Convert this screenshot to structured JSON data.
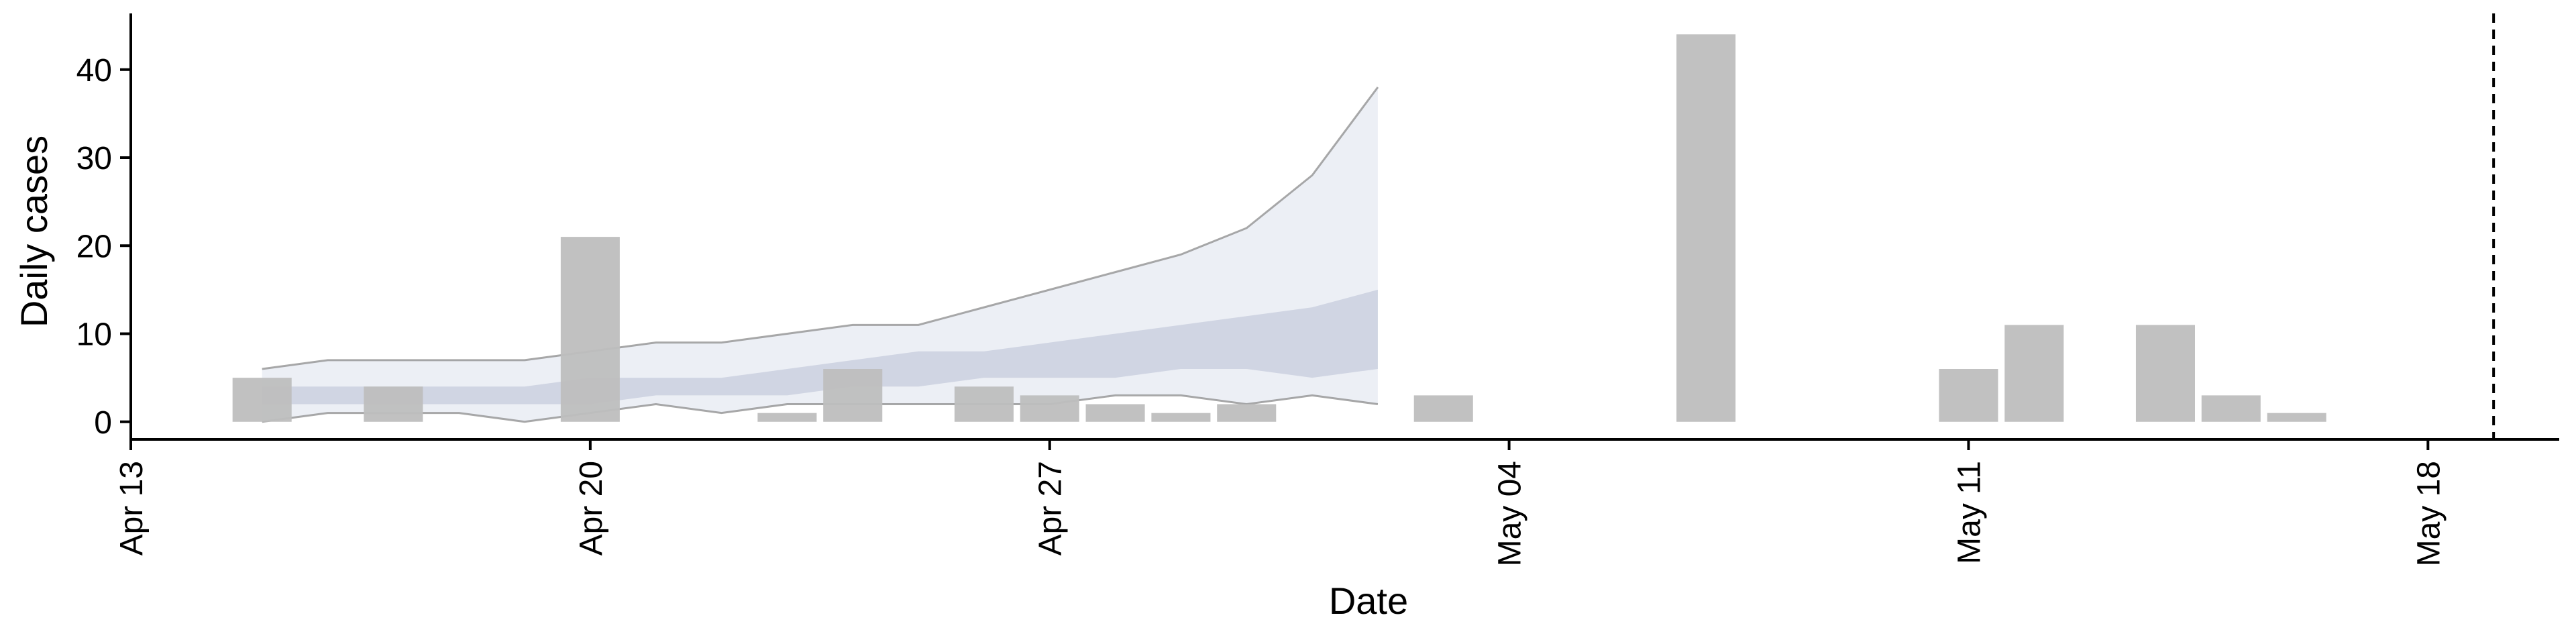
{
  "chart_data": {
    "type": "bar",
    "xlabel": "Date",
    "ylabel": "Daily cases",
    "x_type": "date",
    "xlim": [
      "2020-04-13",
      "2020-05-20"
    ],
    "ylim": [
      -2,
      46
    ],
    "x_ticks": [
      {
        "date": "2020-04-13",
        "label": "Apr 13"
      },
      {
        "date": "2020-04-20",
        "label": "Apr 20"
      },
      {
        "date": "2020-04-27",
        "label": "Apr 27"
      },
      {
        "date": "2020-05-04",
        "label": "May 04"
      },
      {
        "date": "2020-05-11",
        "label": "May 11"
      },
      {
        "date": "2020-05-18",
        "label": "May 18"
      }
    ],
    "y_ticks": [
      0,
      10,
      20,
      30,
      40
    ],
    "bars": [
      {
        "date": "2020-04-15",
        "value": 5
      },
      {
        "date": "2020-04-17",
        "value": 4
      },
      {
        "date": "2020-04-20",
        "value": 21
      },
      {
        "date": "2020-04-23",
        "value": 1
      },
      {
        "date": "2020-04-24",
        "value": 6
      },
      {
        "date": "2020-04-26",
        "value": 4
      },
      {
        "date": "2020-04-27",
        "value": 3
      },
      {
        "date": "2020-04-28",
        "value": 2
      },
      {
        "date": "2020-04-29",
        "value": 1
      },
      {
        "date": "2020-04-30",
        "value": 2
      },
      {
        "date": "2020-05-03",
        "value": 3
      },
      {
        "date": "2020-05-07",
        "value": 44
      },
      {
        "date": "2020-05-11",
        "value": 6
      },
      {
        "date": "2020-05-12",
        "value": 11
      },
      {
        "date": "2020-05-14",
        "value": 11
      },
      {
        "date": "2020-05-15",
        "value": 3
      },
      {
        "date": "2020-05-16",
        "value": 1
      }
    ],
    "nowcast": {
      "dates": [
        "2020-04-15",
        "2020-04-16",
        "2020-04-17",
        "2020-04-18",
        "2020-04-19",
        "2020-04-20",
        "2020-04-21",
        "2020-04-22",
        "2020-04-23",
        "2020-04-24",
        "2020-04-25",
        "2020-04-26",
        "2020-04-27",
        "2020-04-28",
        "2020-04-29",
        "2020-04-30",
        "2020-05-01",
        "2020-05-02"
      ],
      "outer_upper": [
        6,
        7,
        7,
        7,
        7,
        8,
        9,
        9,
        10,
        11,
        11,
        13,
        15,
        17,
        19,
        22,
        28,
        38
      ],
      "outer_lower": [
        0,
        1,
        1,
        1,
        0,
        1,
        2,
        1,
        2,
        2,
        2,
        2,
        2,
        3,
        3,
        2,
        3,
        2
      ],
      "inner_upper": [
        4,
        4,
        4,
        4,
        4,
        5,
        5,
        5,
        6,
        7,
        8,
        8,
        9,
        10,
        11,
        12,
        13,
        15
      ],
      "inner_lower": [
        2,
        2,
        2,
        2,
        2,
        2,
        3,
        3,
        3,
        4,
        4,
        5,
        5,
        5,
        6,
        6,
        5,
        6
      ]
    },
    "reference_line": {
      "date": "2020-05-19",
      "style": "dashed"
    },
    "colors": {
      "bars": "#bebebe",
      "outer_band": "#e9ecf3",
      "inner_band": "#c4cadc",
      "band_edge": "#8c8c8c",
      "axis": "#000000"
    },
    "grid": false,
    "legend": "none"
  }
}
